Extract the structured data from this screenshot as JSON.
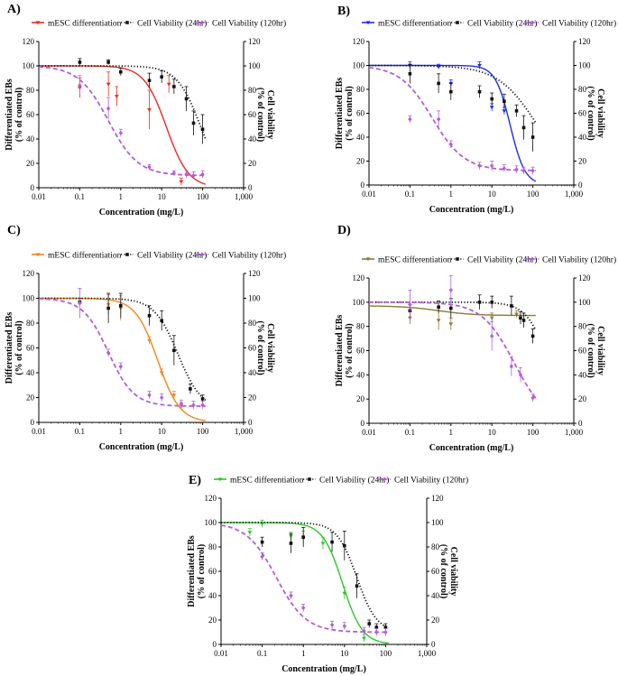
{
  "colors": {
    "viab24": "#111111",
    "viab120": "#b05fd6"
  },
  "chart_data": [
    {
      "type": "line",
      "panel_label": "A)",
      "diff_color": "#ea2b24",
      "legend": [
        "mESC differentiation",
        "Cell Viability (24hr)",
        "Cell Viability (120hr)"
      ],
      "xlabel": "Concentration (mg/L)",
      "ylabel_left": [
        "Differentiated EBs",
        "(% of control)"
      ],
      "ylabel_right": [
        "Cell viability",
        "(% of control)"
      ],
      "xscale": "log",
      "xlim": [
        0.01,
        1000
      ],
      "ylim": [
        0,
        120
      ],
      "x_ticks": [
        "0.01",
        "0.1",
        "1",
        "10",
        "100",
        "1,000"
      ],
      "y_ticks": [
        "0",
        "20",
        "40",
        "60",
        "80",
        "100",
        "120"
      ],
      "series": [
        {
          "name": "mESC differentiation",
          "kind": "solid",
          "x": [
            0.1,
            0.5,
            0.8,
            5,
            15,
            30
          ],
          "y": [
            82,
            85,
            75,
            64,
            85,
            5
          ],
          "err": [
            8,
            10,
            8,
            16,
            7,
            3
          ],
          "fit": {
            "top": 100,
            "bottom": 0,
            "ic50": 13,
            "hill": 1.6
          }
        },
        {
          "name": "Cell Viability (24hr)",
          "kind": "dotted",
          "x": [
            0.1,
            0.5,
            1,
            5,
            10,
            20,
            40,
            60,
            100
          ],
          "y": [
            103,
            103,
            95,
            88,
            91,
            83,
            73,
            53,
            48
          ],
          "err": [
            3,
            2,
            3,
            6,
            5,
            6,
            10,
            10,
            12
          ],
          "fit": {
            "top": 100,
            "bottom": 0,
            "ic50": 90,
            "hill": 1.5
          }
        },
        {
          "name": "Cell Viability (120hr)",
          "kind": "dashed",
          "x": [
            0.1,
            0.5,
            1,
            5,
            20,
            40,
            60,
            100
          ],
          "y": [
            84,
            65,
            45,
            17,
            12,
            11,
            10,
            11
          ],
          "err": [
            8,
            9,
            3,
            2,
            2,
            3,
            3,
            3
          ],
          "fit": {
            "top": 100,
            "bottom": 10,
            "ic50": 0.5,
            "hill": 1.2
          }
        }
      ]
    },
    {
      "type": "line",
      "panel_label": "B)",
      "diff_color": "#1f2fe6",
      "legend": [
        "mESC differentiation",
        "Cell Viability (24hr)",
        "Cell Viability (120hr)"
      ],
      "xlabel": "Concentration (mg/L)",
      "ylabel_left": [
        "Differentiated EBs",
        "(% of control)"
      ],
      "ylabel_right": [
        "Cell viability",
        "(% of control)"
      ],
      "xscale": "log",
      "xlim": [
        0.01,
        1000
      ],
      "ylim": [
        0,
        120
      ],
      "x_ticks": [
        "0.01",
        "0.1",
        "1",
        "10",
        "100",
        "1,000"
      ],
      "y_ticks": [
        "0",
        "20",
        "40",
        "60",
        "80",
        "100",
        "120"
      ],
      "series": [
        {
          "name": "mESC differentiation",
          "kind": "solid",
          "x": [
            0.1,
            0.5,
            1,
            5,
            10,
            20
          ],
          "y": [
            100,
            99,
            85,
            100,
            65,
            62
          ],
          "err": [
            3,
            2,
            3,
            3,
            3,
            3
          ],
          "fit": {
            "top": 100,
            "bottom": 0,
            "ic50": 28,
            "hill": 2.4
          }
        },
        {
          "name": "Cell Viability (24hr)",
          "kind": "dotted",
          "x": [
            0.1,
            0.5,
            1,
            5,
            10,
            20,
            40,
            60,
            100
          ],
          "y": [
            93,
            85,
            78,
            78,
            72,
            70,
            62,
            48,
            40
          ],
          "err": [
            8,
            8,
            7,
            5,
            5,
            6,
            5,
            10,
            12
          ],
          "fit": {
            "top": 100,
            "bottom": 0,
            "ic50": 130,
            "hill": 0.9
          }
        },
        {
          "name": "Cell Viability (120hr)",
          "kind": "dashed",
          "x": [
            0.1,
            0.5,
            1,
            5,
            10,
            20,
            40,
            60,
            100
          ],
          "y": [
            55,
            55,
            34,
            16,
            16,
            14,
            13,
            12,
            12
          ],
          "err": [
            3,
            7,
            3,
            3,
            4,
            3,
            3,
            3,
            3
          ],
          "fit": {
            "top": 100,
            "bottom": 12,
            "ic50": 0.35,
            "hill": 1.1
          }
        }
      ]
    },
    {
      "type": "line",
      "panel_label": "C)",
      "diff_color": "#f0861f",
      "legend": [
        "mESC differentiation",
        "Cell Viability (24hr)",
        "Cell Viability (120hr)"
      ],
      "xlabel": "Concentration (mg/L)",
      "ylabel_left": [
        "Differentiated EBs",
        "(% of control)"
      ],
      "ylabel_right": [
        "Cell viability",
        "(% of control)"
      ],
      "xscale": "log",
      "xlim": [
        0.01,
        1000
      ],
      "ylim": [
        0,
        120
      ],
      "x_ticks": [
        "0.01",
        "0.1",
        "1",
        "10",
        "100",
        "1,000"
      ],
      "y_ticks": [
        "0",
        "20",
        "40",
        "60",
        "80",
        "100",
        "120"
      ],
      "series": [
        {
          "name": "mESC differentiation",
          "kind": "solid",
          "x": [
            0.5,
            1,
            5,
            10,
            20,
            30
          ],
          "y": [
            95,
            92,
            66,
            40,
            22,
            13
          ],
          "err": [
            8,
            10,
            3,
            3,
            3,
            3
          ],
          "fit": {
            "top": 100,
            "bottom": 0,
            "ic50": 8,
            "hill": 1.6
          }
        },
        {
          "name": "Cell Viability (24hr)",
          "kind": "dotted",
          "x": [
            0.1,
            0.5,
            1,
            5,
            10,
            20,
            50,
            100
          ],
          "y": [
            97,
            92,
            94,
            86,
            82,
            58,
            27,
            19
          ],
          "err": [
            3,
            12,
            10,
            8,
            8,
            12,
            4,
            3
          ],
          "fit": {
            "top": 100,
            "bottom": 10,
            "ic50": 25,
            "hill": 1.5
          }
        },
        {
          "name": "Cell Viability (120hr)",
          "kind": "dashed",
          "x": [
            0.1,
            0.5,
            1,
            5,
            10,
            30,
            60,
            100
          ],
          "y": [
            96,
            56,
            45,
            22,
            20,
            15,
            14,
            14
          ],
          "err": [
            12,
            3,
            3,
            3,
            3,
            3,
            3,
            3
          ],
          "fit": {
            "top": 100,
            "bottom": 13,
            "ic50": 0.5,
            "hill": 1.4
          }
        }
      ]
    },
    {
      "type": "line",
      "panel_label": "D)",
      "diff_color": "#8b7a3a",
      "legend": [
        "mESC differentiation",
        "Cell Viability (24hr)",
        "Cell Viability (120hr)"
      ],
      "xlabel": "Concentration (mg/L)",
      "ylabel_left": [
        "Differentiated EBs",
        "(% of control)"
      ],
      "ylabel_right": [
        "Cell viability",
        "(% of control)"
      ],
      "xscale": "log",
      "xlim": [
        0.01,
        1000
      ],
      "ylim": [
        0,
        120
      ],
      "x_ticks": [
        "0.01",
        "0.1",
        "1",
        "10",
        "100",
        "1,000"
      ],
      "y_ticks": [
        "0",
        "20",
        "40",
        "60",
        "80",
        "100",
        "120"
      ],
      "series": [
        {
          "name": "mESC differentiation",
          "kind": "solid",
          "x": [
            0.1,
            0.5,
            1,
            10,
            40
          ],
          "y": [
            87,
            85,
            82,
            87,
            90
          ],
          "err": [
            5,
            8,
            5,
            4,
            3
          ],
          "fit": {
            "top": 97,
            "bottom": 89,
            "ic50": 0.5,
            "hill": 1
          }
        },
        {
          "name": "Cell Viability (24hr)",
          "kind": "dotted",
          "x": [
            0.1,
            0.5,
            1,
            5,
            10,
            30,
            50,
            60,
            100
          ],
          "y": [
            93,
            96,
            95,
            100,
            100,
            97,
            87,
            85,
            72
          ],
          "err": [
            5,
            5,
            8,
            6,
            5,
            8,
            5,
            6,
            6
          ],
          "fit": {
            "top": 100,
            "bottom": 0,
            "ic50": 250,
            "hill": 1.6
          }
        },
        {
          "name": "Cell Viability (120hr)",
          "kind": "dashed",
          "x": [
            0.1,
            1,
            10,
            30,
            50,
            100
          ],
          "y": [
            98,
            110,
            72,
            47,
            40,
            21
          ],
          "err": [
            12,
            12,
            12,
            8,
            6,
            3
          ],
          "fit": {
            "top": 100,
            "bottom": 0,
            "ic50": 35,
            "hill": 1.1
          }
        }
      ]
    },
    {
      "type": "line",
      "panel_label": "E)",
      "diff_color": "#2ec52e",
      "legend": [
        "mESC differentiation",
        "Cell Viability (24hr)",
        "Cell Viability (120hr)"
      ],
      "xlabel": "Concentration (mg/L)",
      "ylabel_left": [
        "Differentiated EBs",
        "(% of control)"
      ],
      "ylabel_right": [
        "Cell viability",
        "(% of control)"
      ],
      "xscale": "log",
      "xlim": [
        0.01,
        1000
      ],
      "ylim": [
        0,
        120
      ],
      "x_ticks": [
        "0.01",
        "0.1",
        "1",
        "10",
        "100",
        "1,000"
      ],
      "y_ticks": [
        "0",
        "20",
        "40",
        "60",
        "80",
        "100",
        "120"
      ],
      "series": [
        {
          "name": "mESC differentiation",
          "kind": "solid",
          "x": [
            0.05,
            0.1,
            0.5,
            1,
            3,
            10,
            30
          ],
          "y": [
            92,
            99,
            89,
            88,
            83,
            42,
            5
          ],
          "err": [
            3,
            3,
            3,
            5,
            5,
            5,
            3
          ],
          "fit": {
            "top": 100,
            "bottom": 0,
            "ic50": 9,
            "hill": 1.8
          }
        },
        {
          "name": "Cell Viability (24hr)",
          "kind": "dotted",
          "x": [
            0.1,
            0.5,
            1,
            5,
            10,
            20,
            40,
            60,
            100
          ],
          "y": [
            84,
            83,
            88,
            84,
            81,
            48,
            17,
            14,
            14
          ],
          "err": [
            4,
            8,
            8,
            8,
            12,
            10,
            3,
            3,
            3
          ],
          "fit": {
            "top": 100,
            "bottom": 10,
            "ic50": 20,
            "hill": 1.8
          }
        },
        {
          "name": "Cell Viability (120hr)",
          "kind": "dashed",
          "x": [
            0.1,
            0.5,
            1,
            5,
            10,
            30,
            60,
            100
          ],
          "y": [
            72,
            40,
            30,
            16,
            15,
            11,
            10,
            10
          ],
          "err": [
            3,
            3,
            3,
            3,
            3,
            3,
            3,
            3
          ],
          "fit": {
            "top": 100,
            "bottom": 10,
            "ic50": 0.22,
            "hill": 1.2
          }
        }
      ]
    }
  ]
}
